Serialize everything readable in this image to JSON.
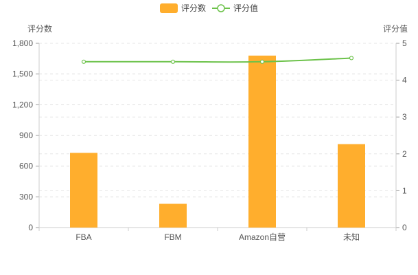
{
  "chart_data": {
    "type": "bar",
    "categories": [
      "FBA",
      "FBM",
      "Amazon自营",
      "未知"
    ],
    "series": [
      {
        "name": "评分数",
        "type": "bar",
        "axis": "left",
        "color": "#FFAE2D",
        "values": [
          730,
          232,
          1680,
          815
        ]
      },
      {
        "name": "评分值",
        "type": "line",
        "axis": "right",
        "color": "#6CC24A",
        "values": [
          4.5,
          4.5,
          4.5,
          4.6
        ]
      }
    ],
    "y_left": {
      "label": "评分数",
      "ylim": [
        0,
        1800
      ],
      "ticks": [
        0,
        300,
        600,
        900,
        1200,
        1500,
        1800
      ],
      "tick_labels": [
        "0",
        "300",
        "600",
        "900",
        "1,200",
        "1,500",
        "1,800"
      ]
    },
    "y_right": {
      "label": "评分值",
      "ylim": [
        0,
        5
      ],
      "ticks": [
        0,
        1,
        2,
        3,
        4,
        5
      ],
      "tick_labels": [
        "0",
        "1",
        "2",
        "3",
        "4",
        "5"
      ]
    },
    "legend": {
      "position": "top-center",
      "entries": [
        "评分数",
        "评分值"
      ]
    },
    "grid": true
  }
}
